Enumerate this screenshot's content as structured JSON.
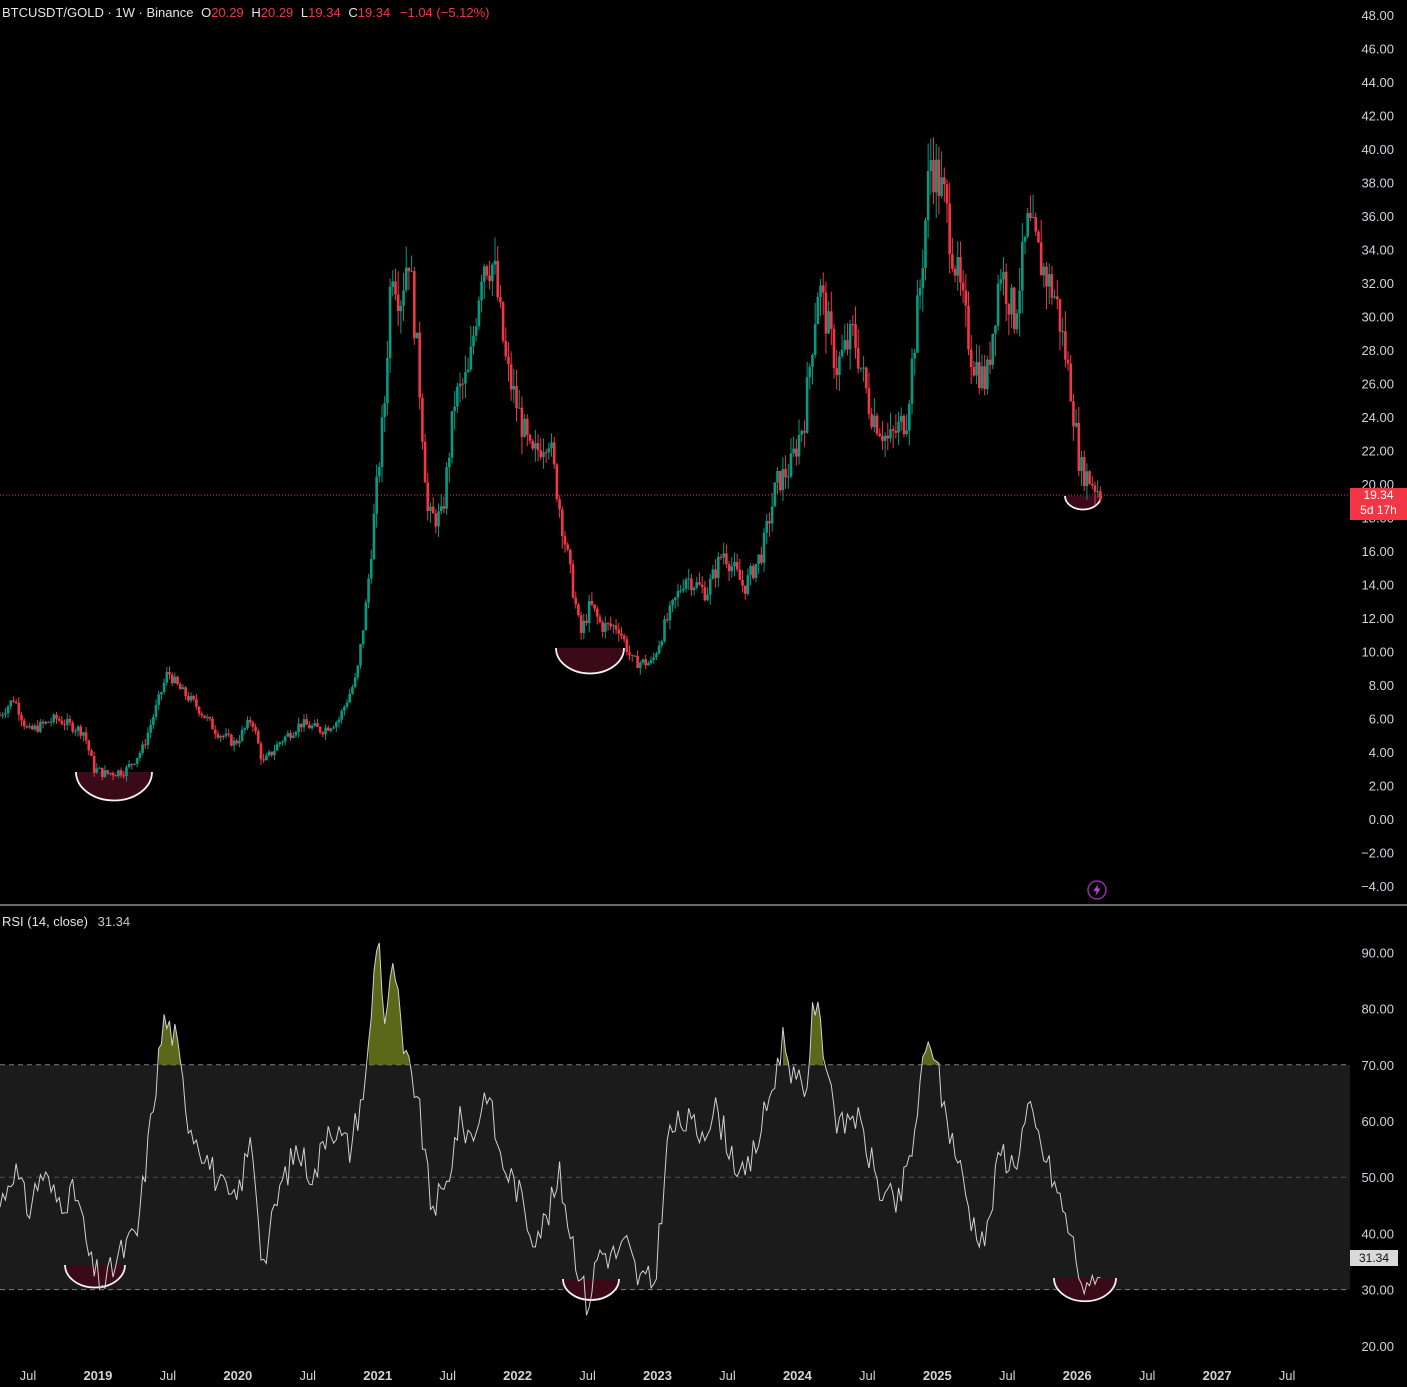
{
  "header": {
    "symbol": "BTCUSDT/GOLD · 1W · Binance",
    "open_label": "O",
    "open": "20.29",
    "high_label": "H",
    "high": "20.29",
    "low_label": "L",
    "low": "19.34",
    "close_label": "C",
    "close": "19.34",
    "change": "−1.04 (−5.12%)"
  },
  "price_tag": {
    "price": "19.34",
    "countdown": "5d 17h"
  },
  "rsi": {
    "title": "RSI (14, close)",
    "value": "31.34",
    "tag": "31.34"
  },
  "colors": {
    "up": "#089981",
    "down": "#f23645",
    "rsi_line": "#d0d0d0",
    "band": "#1b1b1b",
    "overbought_fill": "#6b7a1e",
    "bottom_marker": "#3a0a18"
  },
  "chart_data": [
    {
      "type": "candlestick",
      "title": "BTCUSDT/GOLD · 1W · Binance",
      "ylim": [
        -4,
        48
      ],
      "y_ticks": [
        "48.00",
        "46.00",
        "44.00",
        "42.00",
        "40.00",
        "38.00",
        "36.00",
        "34.00",
        "32.00",
        "30.00",
        "28.00",
        "26.00",
        "24.00",
        "22.00",
        "20.00",
        "18.00",
        "16.00",
        "14.00",
        "12.00",
        "10.00",
        "8.00",
        "6.00",
        "4.00",
        "2.00",
        "0.00",
        "−2.00",
        "−4.00"
      ],
      "x_ticks": [
        "Jul",
        "2019",
        "Jul",
        "2020",
        "Jul",
        "2021",
        "Jul",
        "2022",
        "Jul",
        "2023",
        "Jul",
        "2024",
        "Jul",
        "2025",
        "Jul",
        "2026",
        "Jul",
        "2027",
        "Jul"
      ],
      "x_range": [
        2018.3,
        2027.95
      ],
      "approx_close_path": [
        {
          "t": 2018.3,
          "v": 6.2
        },
        {
          "t": 2018.4,
          "v": 7.2
        },
        {
          "t": 2018.5,
          "v": 5.2
        },
        {
          "t": 2018.7,
          "v": 6.0
        },
        {
          "t": 2018.9,
          "v": 5.2
        },
        {
          "t": 2018.97,
          "v": 3.0
        },
        {
          "t": 2019.05,
          "v": 2.7
        },
        {
          "t": 2019.2,
          "v": 2.9
        },
        {
          "t": 2019.32,
          "v": 4.2
        },
        {
          "t": 2019.43,
          "v": 7.0
        },
        {
          "t": 2019.5,
          "v": 8.8
        },
        {
          "t": 2019.58,
          "v": 7.8
        },
        {
          "t": 2019.7,
          "v": 6.8
        },
        {
          "t": 2019.85,
          "v": 5.2
        },
        {
          "t": 2019.98,
          "v": 4.5
        },
        {
          "t": 2020.1,
          "v": 6.0
        },
        {
          "t": 2020.18,
          "v": 3.3
        },
        {
          "t": 2020.3,
          "v": 4.6
        },
        {
          "t": 2020.45,
          "v": 5.7
        },
        {
          "t": 2020.6,
          "v": 5.3
        },
        {
          "t": 2020.72,
          "v": 5.9
        },
        {
          "t": 2020.85,
          "v": 8.5
        },
        {
          "t": 2020.92,
          "v": 13.0
        },
        {
          "t": 2020.99,
          "v": 19.5
        },
        {
          "t": 2021.05,
          "v": 25.0
        },
        {
          "t": 2021.1,
          "v": 33.5
        },
        {
          "t": 2021.16,
          "v": 31.0
        },
        {
          "t": 2021.22,
          "v": 34.0
        },
        {
          "t": 2021.29,
          "v": 27.0
        },
        {
          "t": 2021.36,
          "v": 18.0
        },
        {
          "t": 2021.46,
          "v": 18.0
        },
        {
          "t": 2021.55,
          "v": 25.0
        },
        {
          "t": 2021.65,
          "v": 26.5
        },
        {
          "t": 2021.75,
          "v": 33.5
        },
        {
          "t": 2021.83,
          "v": 33.0
        },
        {
          "t": 2021.92,
          "v": 27.0
        },
        {
          "t": 2022.0,
          "v": 24.5
        },
        {
          "t": 2022.1,
          "v": 21.5
        },
        {
          "t": 2022.22,
          "v": 23.0
        },
        {
          "t": 2022.33,
          "v": 17.0
        },
        {
          "t": 2022.45,
          "v": 11.0
        },
        {
          "t": 2022.52,
          "v": 12.8
        },
        {
          "t": 2022.6,
          "v": 11.5
        },
        {
          "t": 2022.72,
          "v": 11.5
        },
        {
          "t": 2022.82,
          "v": 9.4
        },
        {
          "t": 2022.96,
          "v": 9.3
        },
        {
          "t": 2023.05,
          "v": 11.5
        },
        {
          "t": 2023.2,
          "v": 14.5
        },
        {
          "t": 2023.35,
          "v": 13.5
        },
        {
          "t": 2023.47,
          "v": 16.0
        },
        {
          "t": 2023.62,
          "v": 13.8
        },
        {
          "t": 2023.75,
          "v": 16.0
        },
        {
          "t": 2023.85,
          "v": 20.0
        },
        {
          "t": 2023.95,
          "v": 21.0
        },
        {
          "t": 2024.05,
          "v": 24.0
        },
        {
          "t": 2024.15,
          "v": 32.0
        },
        {
          "t": 2024.28,
          "v": 27.0
        },
        {
          "t": 2024.4,
          "v": 29.0
        },
        {
          "t": 2024.52,
          "v": 24.5
        },
        {
          "t": 2024.65,
          "v": 22.5
        },
        {
          "t": 2024.78,
          "v": 24.0
        },
        {
          "t": 2024.88,
          "v": 32.0
        },
        {
          "t": 2024.95,
          "v": 39.5
        },
        {
          "t": 2025.05,
          "v": 37.0
        },
        {
          "t": 2025.12,
          "v": 33.5
        },
        {
          "t": 2025.25,
          "v": 27.5
        },
        {
          "t": 2025.35,
          "v": 26.0
        },
        {
          "t": 2025.45,
          "v": 33.0
        },
        {
          "t": 2025.55,
          "v": 30.0
        },
        {
          "t": 2025.65,
          "v": 35.5
        },
        {
          "t": 2025.75,
          "v": 33.0
        },
        {
          "t": 2025.85,
          "v": 31.0
        },
        {
          "t": 2025.95,
          "v": 26.0
        },
        {
          "t": 2026.02,
          "v": 21.0
        },
        {
          "t": 2026.1,
          "v": 20.2
        },
        {
          "t": 2026.18,
          "v": 19.34
        }
      ],
      "last_price": 19.34,
      "markers": [
        {
          "type": "bottom-arc",
          "t": 2019.05,
          "v": 2.7
        },
        {
          "type": "bottom-arc",
          "t": 2022.55,
          "v": 10.5
        },
        {
          "type": "bottom-arc",
          "t": 2026.1,
          "v": 19.5
        }
      ]
    },
    {
      "type": "line",
      "title": "RSI (14, close)",
      "ylim": [
        15,
        97
      ],
      "y_ticks": [
        "90.00",
        "80.00",
        "70.00",
        "60.00",
        "50.00",
        "40.00",
        "30.00",
        "20.00"
      ],
      "bands": [
        30,
        50,
        70
      ],
      "overbought": 70,
      "oversold": 30,
      "series": [
        {
          "values": [
            {
              "t": 2018.3,
              "v": 45
            },
            {
              "t": 2018.4,
              "v": 52
            },
            {
              "t": 2018.5,
              "v": 44
            },
            {
              "t": 2018.6,
              "v": 51
            },
            {
              "t": 2018.7,
              "v": 46
            },
            {
              "t": 2018.85,
              "v": 47
            },
            {
              "t": 2018.95,
              "v": 34
            },
            {
              "t": 2019.05,
              "v": 31
            },
            {
              "t": 2019.15,
              "v": 36
            },
            {
              "t": 2019.28,
              "v": 40
            },
            {
              "t": 2019.38,
              "v": 60
            },
            {
              "t": 2019.47,
              "v": 78
            },
            {
              "t": 2019.55,
              "v": 75
            },
            {
              "t": 2019.65,
              "v": 60
            },
            {
              "t": 2019.75,
              "v": 55
            },
            {
              "t": 2019.88,
              "v": 48
            },
            {
              "t": 2019.98,
              "v": 45
            },
            {
              "t": 2020.1,
              "v": 57
            },
            {
              "t": 2020.18,
              "v": 34
            },
            {
              "t": 2020.3,
              "v": 48
            },
            {
              "t": 2020.42,
              "v": 55
            },
            {
              "t": 2020.55,
              "v": 50
            },
            {
              "t": 2020.65,
              "v": 60
            },
            {
              "t": 2020.8,
              "v": 55
            },
            {
              "t": 2020.92,
              "v": 68
            },
            {
              "t": 2021.0,
              "v": 95
            },
            {
              "t": 2021.05,
              "v": 78
            },
            {
              "t": 2021.12,
              "v": 88
            },
            {
              "t": 2021.18,
              "v": 72
            },
            {
              "t": 2021.28,
              "v": 65
            },
            {
              "t": 2021.38,
              "v": 45
            },
            {
              "t": 2021.48,
              "v": 47
            },
            {
              "t": 2021.58,
              "v": 60
            },
            {
              "t": 2021.68,
              "v": 57
            },
            {
              "t": 2021.78,
              "v": 66
            },
            {
              "t": 2021.88,
              "v": 53
            },
            {
              "t": 2022.0,
              "v": 48
            },
            {
              "t": 2022.1,
              "v": 40
            },
            {
              "t": 2022.2,
              "v": 42
            },
            {
              "t": 2022.3,
              "v": 50
            },
            {
              "t": 2022.4,
              "v": 38
            },
            {
              "t": 2022.5,
              "v": 27
            },
            {
              "t": 2022.58,
              "v": 37
            },
            {
              "t": 2022.68,
              "v": 36
            },
            {
              "t": 2022.78,
              "v": 38
            },
            {
              "t": 2022.86,
              "v": 32
            },
            {
              "t": 2022.98,
              "v": 31
            },
            {
              "t": 2023.08,
              "v": 58
            },
            {
              "t": 2023.2,
              "v": 60
            },
            {
              "t": 2023.3,
              "v": 58
            },
            {
              "t": 2023.42,
              "v": 62
            },
            {
              "t": 2023.52,
              "v": 55
            },
            {
              "t": 2023.62,
              "v": 49
            },
            {
              "t": 2023.72,
              "v": 57
            },
            {
              "t": 2023.82,
              "v": 66
            },
            {
              "t": 2023.9,
              "v": 75
            },
            {
              "t": 2023.98,
              "v": 67
            },
            {
              "t": 2024.06,
              "v": 65
            },
            {
              "t": 2024.12,
              "v": 82
            },
            {
              "t": 2024.2,
              "v": 72
            },
            {
              "t": 2024.3,
              "v": 58
            },
            {
              "t": 2024.4,
              "v": 62
            },
            {
              "t": 2024.5,
              "v": 55
            },
            {
              "t": 2024.6,
              "v": 47
            },
            {
              "t": 2024.72,
              "v": 45
            },
            {
              "t": 2024.82,
              "v": 55
            },
            {
              "t": 2024.9,
              "v": 70
            },
            {
              "t": 2024.96,
              "v": 75
            },
            {
              "t": 2025.05,
              "v": 62
            },
            {
              "t": 2025.15,
              "v": 53
            },
            {
              "t": 2025.25,
              "v": 42
            },
            {
              "t": 2025.35,
              "v": 39
            },
            {
              "t": 2025.45,
              "v": 55
            },
            {
              "t": 2025.55,
              "v": 52
            },
            {
              "t": 2025.65,
              "v": 62
            },
            {
              "t": 2025.75,
              "v": 55
            },
            {
              "t": 2025.85,
              "v": 48
            },
            {
              "t": 2025.95,
              "v": 40
            },
            {
              "t": 2026.03,
              "v": 32
            },
            {
              "t": 2026.08,
              "v": 28
            },
            {
              "t": 2026.12,
              "v": 34
            },
            {
              "t": 2026.18,
              "v": 31.34
            }
          ]
        }
      ],
      "markers": [
        {
          "type": "bottom-arc",
          "t": 2019.05,
          "v": 29
        },
        {
          "type": "bottom-arc",
          "t": 2022.55,
          "v": 28
        },
        {
          "type": "bottom-arc",
          "t": 2026.05,
          "v": 28
        }
      ]
    }
  ]
}
